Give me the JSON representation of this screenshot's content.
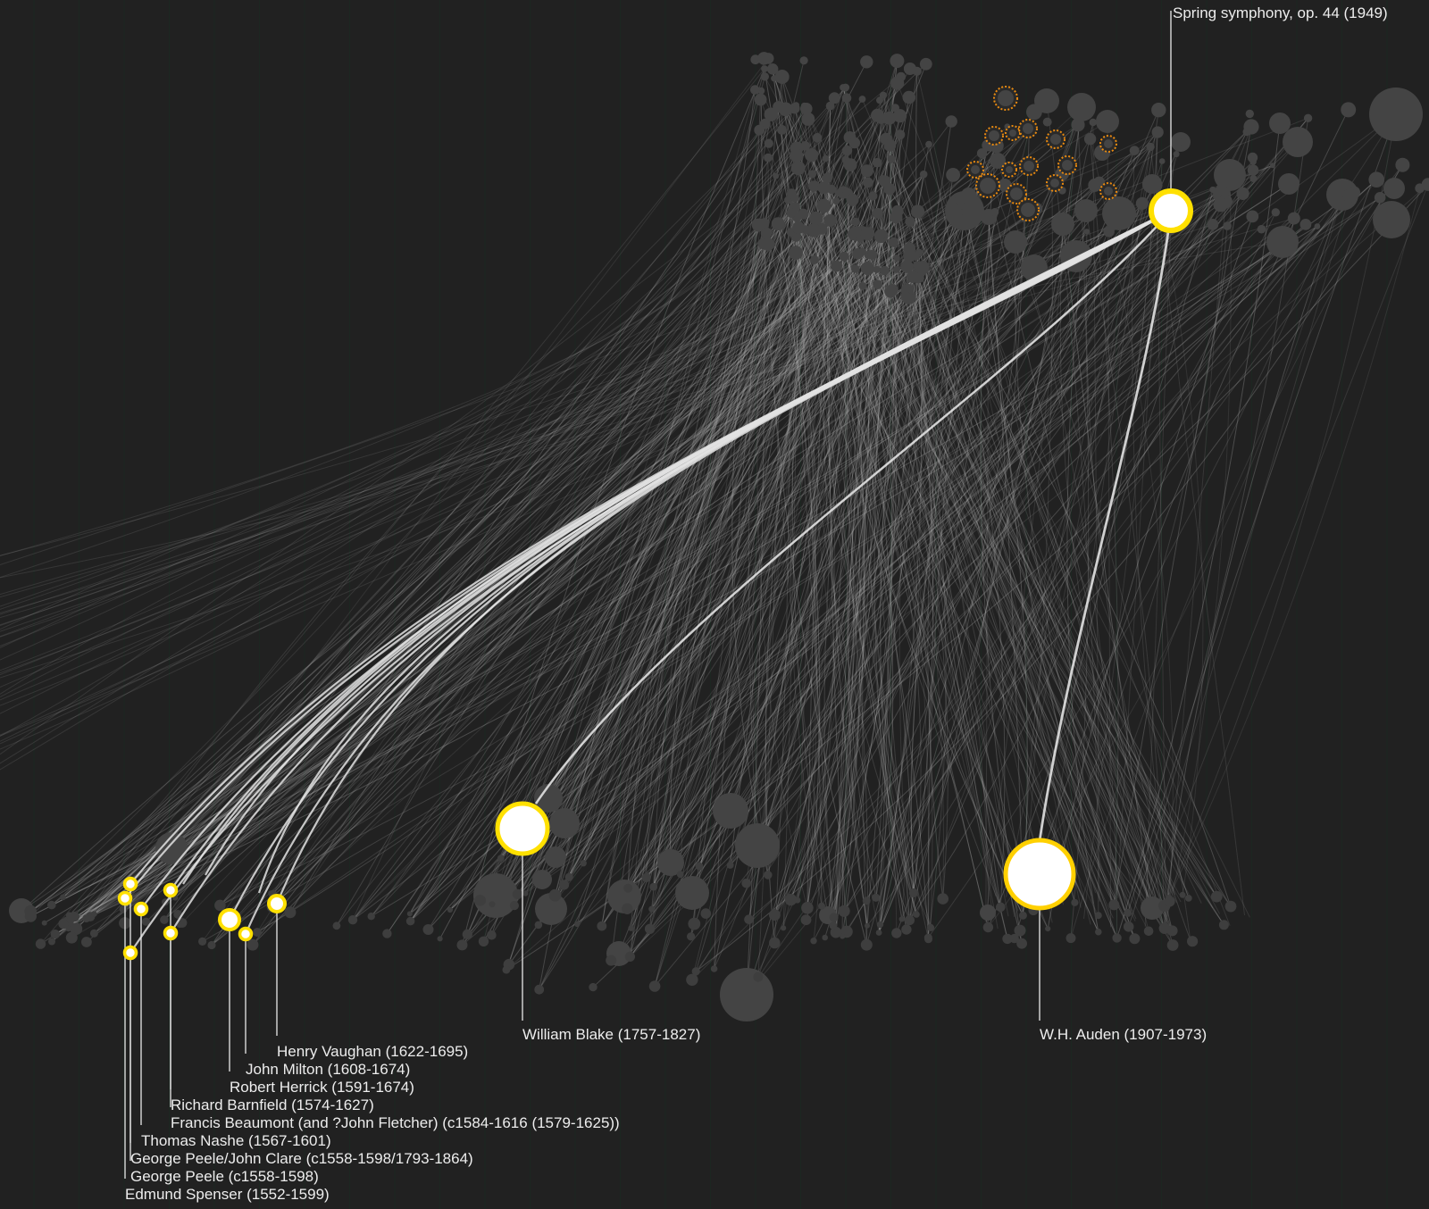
{
  "title": "Spring symphony, op. 44 (1949)",
  "colors": {
    "background": "#212121",
    "node": "#444444",
    "node_small": "#3e3e3e",
    "link_faint": "#b5b5b5",
    "link_strong": "#e2e2e2",
    "highlight_ring": "#ffe000",
    "highlight_ring_orange": "#ff9f00",
    "highlight_fill": "#ffffff",
    "dashed_ring": "#e98a10",
    "label": "#ededed"
  },
  "work": {
    "label": "Spring symphony, op. 44 (1949)"
  },
  "poets": [
    {
      "id": "vaughan",
      "label": "Henry Vaughan (1622-1695)"
    },
    {
      "id": "milton",
      "label": "John Milton (1608-1674)"
    },
    {
      "id": "herrick",
      "label": "Robert Herrick (1591-1674)"
    },
    {
      "id": "barnfield",
      "label": "Richard Barnfield (1574-1627)"
    },
    {
      "id": "beaumont",
      "label": "Francis Beaumont (and ?John Fletcher) (c1584-1616 (1579-1625))"
    },
    {
      "id": "nashe",
      "label": "Thomas Nashe (1567-1601)"
    },
    {
      "id": "peele_clare",
      "label": "George Peele/John Clare (c1558-1598/1793-1864)"
    },
    {
      "id": "peele",
      "label": "George Peele (c1558-1598)"
    },
    {
      "id": "spenser",
      "label": "Edmund Spenser (1552-1599)"
    },
    {
      "id": "blake",
      "label": "William Blake (1757-1827)"
    },
    {
      "id": "auden",
      "label": "W.H. Auden (1907-1973)"
    }
  ]
}
